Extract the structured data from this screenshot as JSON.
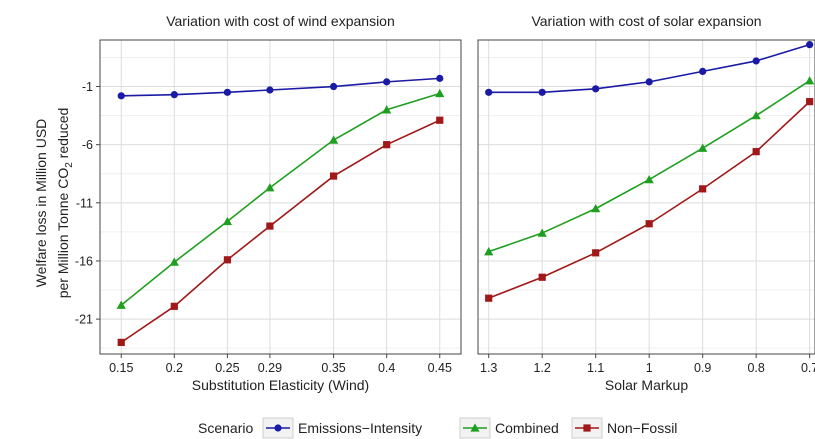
{
  "chart_data": {
    "type": "line",
    "ylabel_line1": "Welfare loss in Million USD",
    "ylabel_line2_prefix": "per Million Tonne CO",
    "ylabel_line2_sub": "2",
    "ylabel_line2_suffix": " reduced",
    "yticks": [
      -1,
      -6,
      -11,
      -16,
      -21
    ],
    "ylim": [
      -24,
      3
    ],
    "grid": true,
    "legend_position": "bottom",
    "legend_title": "Scenario",
    "colors": {
      "Emissions-Intensity": "#1a1aa6",
      "Combined": "#1f9f1f",
      "Non-Fossil": "#a01818"
    },
    "markers": {
      "Emissions-Intensity": "circle",
      "Combined": "triangle",
      "Non-Fossil": "square"
    },
    "panels": [
      {
        "title": "Variation with cost of wind expansion",
        "xlabel": "Substitution Elasticity (Wind)",
        "categories": [
          "0.15",
          "0.2",
          "0.25",
          "0.29",
          "0.35",
          "0.4",
          "0.45"
        ],
        "xlim": [
          0.13,
          0.47
        ],
        "series": [
          {
            "name": "Emissions−Intensity",
            "key": "Emissions-Intensity",
            "values": [
              -1.8,
              -1.7,
              -1.5,
              -1.3,
              -1.0,
              -0.6,
              -0.3
            ]
          },
          {
            "name": "Combined",
            "key": "Combined",
            "values": [
              -19.8,
              -16.1,
              -12.6,
              -9.7,
              -5.6,
              -3.0,
              -1.6
            ]
          },
          {
            "name": "Non−Fossil",
            "key": "Non-Fossil",
            "values": [
              -23.0,
              -19.9,
              -15.9,
              -13.0,
              -8.7,
              -6.0,
              -3.9
            ]
          }
        ]
      },
      {
        "title": "Variation with cost of solar expansion",
        "xlabel": "Solar Markup",
        "categories": [
          "1.3",
          "1.2",
          "1.1",
          "1",
          "0.9",
          "0.8",
          "0.7"
        ],
        "xlim": [
          1.32,
          0.69
        ],
        "series": [
          {
            "name": "Emissions−Intensity",
            "key": "Emissions-Intensity",
            "values": [
              -1.5,
              -1.5,
              -1.2,
              -0.6,
              0.3,
              1.2,
              2.6
            ]
          },
          {
            "name": "Combined",
            "key": "Combined",
            "values": [
              -15.2,
              -13.6,
              -11.5,
              -9.0,
              -6.3,
              -3.5,
              -0.5
            ]
          },
          {
            "name": "Non−Fossil",
            "key": "Non-Fossil",
            "values": [
              -19.2,
              -17.4,
              -15.3,
              -12.8,
              -9.8,
              -6.6,
              -2.3
            ]
          }
        ]
      }
    ]
  },
  "legend": {
    "title": "Scenario",
    "items": [
      {
        "label": "Emissions−Intensity",
        "key": "Emissions-Intensity"
      },
      {
        "label": "Combined",
        "key": "Combined"
      },
      {
        "label": "Non−Fossil",
        "key": "Non-Fossil"
      }
    ]
  }
}
